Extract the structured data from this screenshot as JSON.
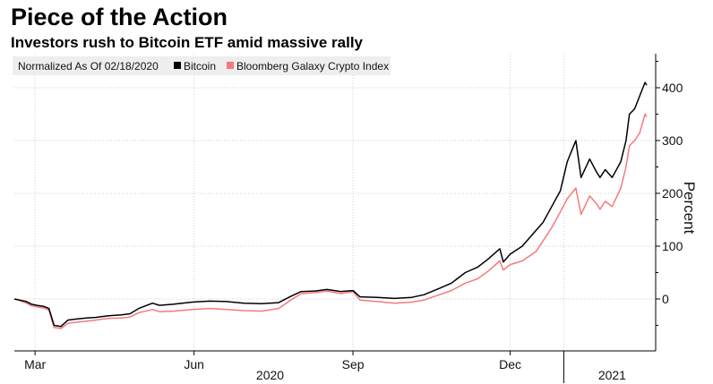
{
  "header": {
    "title": "Piece of the Action",
    "subtitle": "Investors rush to Bitcoin ETF amid massive rally"
  },
  "chart_data": {
    "type": "line",
    "title": "Piece of the Action",
    "subtitle": "Investors rush to Bitcoin ETF amid massive rally",
    "xlabel": "",
    "ylabel": "Percent",
    "ylim": [
      -100,
      450
    ],
    "y_ticks": [
      0,
      100,
      200,
      300,
      400
    ],
    "grid": true,
    "legend": {
      "placement": "top-left",
      "note": "Normalized As Of 02/18/2020",
      "entries": [
        "Bitcoin",
        "Bloomberg Galaxy Crypto Index"
      ]
    },
    "x_domain": [
      "2020-02-18",
      "2021-02-18"
    ],
    "x_ticks": [
      {
        "label": "Mar",
        "date": "2020-03-01"
      },
      {
        "label": "Jun",
        "date": "2020-06-01"
      },
      {
        "label": "Sep",
        "date": "2020-09-01"
      },
      {
        "label": "Dec",
        "date": "2020-12-01"
      }
    ],
    "x_year_labels": [
      {
        "label": "2020",
        "date": "2020-07-15"
      },
      {
        "label": "2021",
        "date": "2021-01-29"
      }
    ],
    "x_year_separators": [
      "2021-01-01"
    ],
    "x_gridlines": [
      "2020-03-01",
      "2020-06-01",
      "2020-09-01",
      "2020-12-01",
      "2021-01-01"
    ],
    "series": [
      {
        "name": "Bitcoin",
        "color": "#000000",
        "points": [
          [
            "2020-02-18",
            0
          ],
          [
            "2020-02-21",
            -2
          ],
          [
            "2020-02-25",
            -5
          ],
          [
            "2020-02-28",
            -10
          ],
          [
            "2020-03-02",
            -12
          ],
          [
            "2020-03-06",
            -14
          ],
          [
            "2020-03-09",
            -18
          ],
          [
            "2020-03-12",
            -50
          ],
          [
            "2020-03-16",
            -52
          ],
          [
            "2020-03-20",
            -40
          ],
          [
            "2020-03-25",
            -38
          ],
          [
            "2020-03-31",
            -36
          ],
          [
            "2020-04-05",
            -35
          ],
          [
            "2020-04-12",
            -32
          ],
          [
            "2020-04-20",
            -30
          ],
          [
            "2020-04-25",
            -28
          ],
          [
            "2020-04-30",
            -18
          ],
          [
            "2020-05-08",
            -8
          ],
          [
            "2020-05-12",
            -12
          ],
          [
            "2020-05-20",
            -10
          ],
          [
            "2020-05-31",
            -6
          ],
          [
            "2020-06-10",
            -4
          ],
          [
            "2020-06-20",
            -5
          ],
          [
            "2020-06-30",
            -8
          ],
          [
            "2020-07-10",
            -9
          ],
          [
            "2020-07-20",
            -7
          ],
          [
            "2020-07-27",
            5
          ],
          [
            "2020-08-02",
            14
          ],
          [
            "2020-08-10",
            15
          ],
          [
            "2020-08-17",
            18
          ],
          [
            "2020-08-25",
            14
          ],
          [
            "2020-09-01",
            16
          ],
          [
            "2020-09-05",
            4
          ],
          [
            "2020-09-15",
            3
          ],
          [
            "2020-09-25",
            1
          ],
          [
            "2020-10-05",
            3
          ],
          [
            "2020-10-12",
            8
          ],
          [
            "2020-10-21",
            20
          ],
          [
            "2020-10-28",
            30
          ],
          [
            "2020-11-05",
            50
          ],
          [
            "2020-11-12",
            60
          ],
          [
            "2020-11-18",
            75
          ],
          [
            "2020-11-25",
            95
          ],
          [
            "2020-11-27",
            70
          ],
          [
            "2020-12-01",
            85
          ],
          [
            "2020-12-08",
            100
          ],
          [
            "2020-12-16",
            130
          ],
          [
            "2020-12-20",
            145
          ],
          [
            "2020-12-25",
            175
          ],
          [
            "2020-12-30",
            205
          ],
          [
            "2021-01-03",
            260
          ],
          [
            "2021-01-08",
            300
          ],
          [
            "2021-01-11",
            230
          ],
          [
            "2021-01-16",
            265
          ],
          [
            "2021-01-20",
            240
          ],
          [
            "2021-01-22",
            230
          ],
          [
            "2021-01-25",
            245
          ],
          [
            "2021-01-29",
            230
          ],
          [
            "2021-02-03",
            260
          ],
          [
            "2021-02-06",
            300
          ],
          [
            "2021-02-08",
            350
          ],
          [
            "2021-02-11",
            360
          ],
          [
            "2021-02-14",
            385
          ],
          [
            "2021-02-17",
            410
          ],
          [
            "2021-02-18",
            405
          ]
        ]
      },
      {
        "name": "Bloomberg Galaxy Crypto Index",
        "color": "#f47a7a",
        "points": [
          [
            "2020-02-18",
            0
          ],
          [
            "2020-02-21",
            -3
          ],
          [
            "2020-02-25",
            -8
          ],
          [
            "2020-02-28",
            -13
          ],
          [
            "2020-03-02",
            -15
          ],
          [
            "2020-03-06",
            -17
          ],
          [
            "2020-03-09",
            -21
          ],
          [
            "2020-03-12",
            -54
          ],
          [
            "2020-03-16",
            -56
          ],
          [
            "2020-03-20",
            -46
          ],
          [
            "2020-03-25",
            -44
          ],
          [
            "2020-03-31",
            -42
          ],
          [
            "2020-04-05",
            -40
          ],
          [
            "2020-04-12",
            -37
          ],
          [
            "2020-04-20",
            -36
          ],
          [
            "2020-04-25",
            -34
          ],
          [
            "2020-04-30",
            -26
          ],
          [
            "2020-05-08",
            -20
          ],
          [
            "2020-05-12",
            -24
          ],
          [
            "2020-05-20",
            -23
          ],
          [
            "2020-05-31",
            -20
          ],
          [
            "2020-06-10",
            -18
          ],
          [
            "2020-06-20",
            -20
          ],
          [
            "2020-06-30",
            -22
          ],
          [
            "2020-07-10",
            -23
          ],
          [
            "2020-07-20",
            -18
          ],
          [
            "2020-07-27",
            -2
          ],
          [
            "2020-08-02",
            10
          ],
          [
            "2020-08-10",
            12
          ],
          [
            "2020-08-17",
            15
          ],
          [
            "2020-08-25",
            10
          ],
          [
            "2020-09-01",
            14
          ],
          [
            "2020-09-05",
            -2
          ],
          [
            "2020-09-15",
            -5
          ],
          [
            "2020-09-25",
            -8
          ],
          [
            "2020-10-05",
            -6
          ],
          [
            "2020-10-12",
            -2
          ],
          [
            "2020-10-21",
            8
          ],
          [
            "2020-10-28",
            16
          ],
          [
            "2020-11-05",
            30
          ],
          [
            "2020-11-12",
            38
          ],
          [
            "2020-11-18",
            52
          ],
          [
            "2020-11-25",
            72
          ],
          [
            "2020-11-27",
            55
          ],
          [
            "2020-12-01",
            65
          ],
          [
            "2020-12-08",
            72
          ],
          [
            "2020-12-16",
            90
          ],
          [
            "2020-12-20",
            110
          ],
          [
            "2020-12-25",
            135
          ],
          [
            "2020-12-30",
            165
          ],
          [
            "2021-01-03",
            190
          ],
          [
            "2021-01-08",
            210
          ],
          [
            "2021-01-11",
            160
          ],
          [
            "2021-01-16",
            195
          ],
          [
            "2021-01-20",
            180
          ],
          [
            "2021-01-22",
            170
          ],
          [
            "2021-01-25",
            185
          ],
          [
            "2021-01-29",
            175
          ],
          [
            "2021-02-03",
            210
          ],
          [
            "2021-02-06",
            250
          ],
          [
            "2021-02-08",
            290
          ],
          [
            "2021-02-11",
            300
          ],
          [
            "2021-02-14",
            315
          ],
          [
            "2021-02-17",
            350
          ],
          [
            "2021-02-18",
            345
          ]
        ]
      }
    ]
  }
}
